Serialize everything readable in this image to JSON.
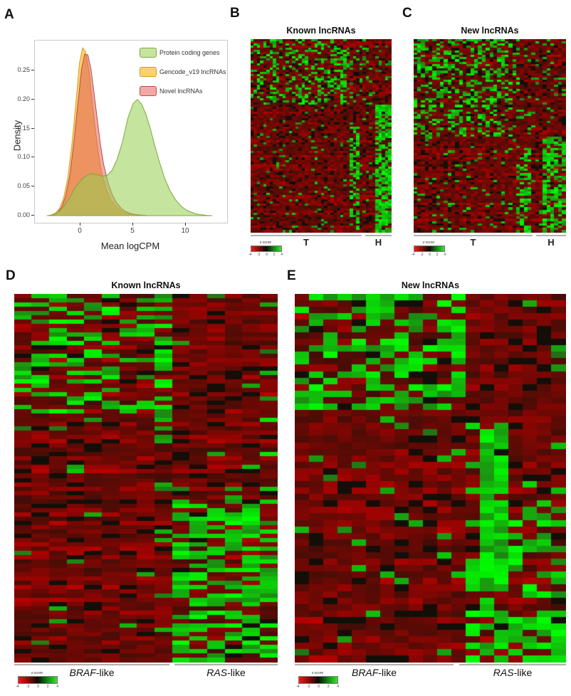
{
  "panels": {
    "a": {
      "label": "A",
      "ylabel": "Density",
      "xlabel": "Mean logCPM",
      "yticks": [
        "0.25",
        "0.20",
        "0.15",
        "0.10",
        "0.05",
        "0.00"
      ],
      "xticks": [
        "0",
        "5",
        "10"
      ],
      "legend": [
        {
          "label": "Protein coding genes",
          "fill": "rgba(150,208,80,0.55)",
          "stroke": "#7aa83c"
        },
        {
          "label": "Gencode_v19 lncRNAs",
          "fill": "rgba(248,198,74,0.8)",
          "stroke": "#d89c28"
        },
        {
          "label": "Novel lncRNAs",
          "fill": "rgba(224,85,81,0.5)",
          "stroke": "#c24a42"
        }
      ]
    },
    "b": {
      "label": "B",
      "title": "Known lncRNAs",
      "groups": [
        {
          "label": "T"
        },
        {
          "label": "H"
        }
      ],
      "colorkey": {
        "title": "z-score",
        "ticks": [
          "-4",
          "-2",
          "0",
          "2",
          "4"
        ]
      }
    },
    "c": {
      "label": "C",
      "title": "New lncRNAs",
      "groups": [
        {
          "label": "T"
        },
        {
          "label": "H"
        }
      ],
      "colorkey": {
        "title": "z-score",
        "ticks": [
          "-4",
          "-2",
          "0",
          "2",
          "4"
        ]
      }
    },
    "d": {
      "label": "D",
      "title": "Known lncRNAs",
      "groups": [
        {
          "italic": "BRAF",
          "rest": "-like"
        },
        {
          "italic": "RAS",
          "rest": "-like"
        }
      ],
      "colorkey": {
        "title": "z-score",
        "ticks": [
          "-4",
          "-2",
          "0",
          "2",
          "4"
        ]
      }
    },
    "e": {
      "label": "E",
      "title": "New lncRNAs",
      "groups": [
        {
          "italic": "BRAF",
          "rest": "-like"
        },
        {
          "italic": "RAS",
          "rest": "-like"
        }
      ],
      "colorkey": {
        "title": "z-score",
        "ticks": [
          "-4",
          "-2",
          "0",
          "2",
          "4"
        ]
      }
    }
  },
  "chart_data": [
    {
      "id": "density",
      "type": "area",
      "title": "",
      "xlabel": "Mean logCPM",
      "ylabel": "Density",
      "xlim": [
        -4.3,
        13.5
      ],
      "ylim": [
        0,
        0.3
      ],
      "xticks": [
        0,
        5,
        10
      ],
      "yticks": [
        0,
        0.05,
        0.1,
        0.15,
        0.2,
        0.25
      ],
      "legend_position": "top-right-inside",
      "grid": false,
      "draw_order": [
        1,
        2,
        0
      ],
      "series": [
        {
          "name": "Protein coding genes",
          "fill": "rgba(150,208,80,0.55)",
          "stroke": "#7aa83c",
          "points": [
            [
              -3,
              0
            ],
            [
              -2.5,
              0.002
            ],
            [
              -2,
              0.008
            ],
            [
              -1.5,
              0.018
            ],
            [
              -1,
              0.032
            ],
            [
              -0.5,
              0.048
            ],
            [
              0,
              0.06
            ],
            [
              0.5,
              0.068
            ],
            [
              1,
              0.072
            ],
            [
              1.5,
              0.071
            ],
            [
              2,
              0.068
            ],
            [
              2.5,
              0.069
            ],
            [
              3,
              0.078
            ],
            [
              3.5,
              0.098
            ],
            [
              4,
              0.128
            ],
            [
              4.5,
              0.168
            ],
            [
              5,
              0.193
            ],
            [
              5.4,
              0.2
            ],
            [
              5.8,
              0.192
            ],
            [
              6.2,
              0.175
            ],
            [
              6.6,
              0.152
            ],
            [
              7,
              0.124
            ],
            [
              7.5,
              0.092
            ],
            [
              8,
              0.064
            ],
            [
              8.5,
              0.043
            ],
            [
              9,
              0.028
            ],
            [
              9.5,
              0.017
            ],
            [
              10,
              0.01
            ],
            [
              10.5,
              0.006
            ],
            [
              11,
              0.003
            ],
            [
              11.5,
              0.0015
            ],
            [
              12,
              0.0005
            ],
            [
              12.5,
              0
            ]
          ]
        },
        {
          "name": "Gencode_v19 lncRNAs",
          "fill": "rgba(248,198,74,0.8)",
          "stroke": "#d89c28",
          "points": [
            [
              -3.2,
              0
            ],
            [
              -2.8,
              0.001
            ],
            [
              -2.4,
              0.004
            ],
            [
              -2,
              0.012
            ],
            [
              -1.6,
              0.03
            ],
            [
              -1.2,
              0.065
            ],
            [
              -0.8,
              0.125
            ],
            [
              -0.4,
              0.2
            ],
            [
              -0.1,
              0.262
            ],
            [
              0.2,
              0.289
            ],
            [
              0.5,
              0.282
            ],
            [
              0.8,
              0.25
            ],
            [
              1.1,
              0.2
            ],
            [
              1.4,
              0.15
            ],
            [
              1.7,
              0.107
            ],
            [
              2,
              0.075
            ],
            [
              2.4,
              0.048
            ],
            [
              2.8,
              0.03
            ],
            [
              3.2,
              0.019
            ],
            [
              3.6,
              0.012
            ],
            [
              4,
              0.007
            ],
            [
              4.5,
              0.004
            ],
            [
              5,
              0.002
            ],
            [
              5.5,
              0.001
            ],
            [
              6,
              0
            ]
          ]
        },
        {
          "name": "Novel lncRNAs",
          "fill": "rgba(224,85,81,0.5)",
          "stroke": "#c24a42",
          "points": [
            [
              -3,
              0
            ],
            [
              -2.6,
              0.001
            ],
            [
              -2.2,
              0.005
            ],
            [
              -1.8,
              0.014
            ],
            [
              -1.4,
              0.034
            ],
            [
              -1,
              0.07
            ],
            [
              -0.6,
              0.13
            ],
            [
              -0.2,
              0.2
            ],
            [
              0.1,
              0.252
            ],
            [
              0.4,
              0.278
            ],
            [
              0.7,
              0.277
            ],
            [
              1,
              0.252
            ],
            [
              1.3,
              0.21
            ],
            [
              1.6,
              0.165
            ],
            [
              1.9,
              0.122
            ],
            [
              2.2,
              0.088
            ],
            [
              2.6,
              0.058
            ],
            [
              3,
              0.037
            ],
            [
              3.4,
              0.023
            ],
            [
              3.8,
              0.014
            ],
            [
              4.2,
              0.008
            ],
            [
              4.7,
              0.004
            ],
            [
              5.2,
              0.002
            ],
            [
              5.8,
              0.001
            ],
            [
              6.5,
              0
            ]
          ]
        }
      ]
    },
    {
      "id": "hm_b",
      "type": "heatmap",
      "title": "Known lncRNAs",
      "rows": 88,
      "cols": 44,
      "seed": 7,
      "col_groups": [
        {
          "label": "T",
          "from": 0,
          "to": 0.8
        },
        {
          "label": "H",
          "from": 0.81,
          "to": 1
        }
      ],
      "colorscale": {
        "low": "#f01818",
        "mid": "#000000",
        "high": "#35e52a",
        "label": "z-score",
        "ticks": [
          -4,
          -2,
          0,
          2,
          4
        ]
      },
      "blocks": [
        {
          "r0": 0,
          "r1": 0.34,
          "c0": 0,
          "c1": 0.3,
          "p": 0.3,
          "b": 1
        },
        {
          "r0": 0,
          "r1": 0.34,
          "c0": 0.3,
          "c1": 0.62,
          "p": 0.35,
          "b": 1
        },
        {
          "r0": 0.05,
          "r1": 0.34,
          "c0": 0.62,
          "c1": 0.68,
          "p": 0.55,
          "b": 1
        },
        {
          "r0": 0,
          "r1": 0.34,
          "c0": 0.68,
          "c1": 0.86,
          "p": 0.12,
          "b": 0.8
        },
        {
          "r0": 0,
          "r1": 0.34,
          "c0": 0.86,
          "c1": 1,
          "p": 0.1,
          "b": 0.7
        },
        {
          "r0": 0.34,
          "r1": 1,
          "c0": 0.87,
          "c1": 1,
          "p": 0.72,
          "b": 1
        },
        {
          "r0": 0.45,
          "r1": 1,
          "c0": 0.7,
          "c1": 0.76,
          "p": 0.45,
          "b": 1
        },
        {
          "r0": 0.34,
          "r1": 1,
          "c0": 0,
          "c1": 0.87,
          "p": 0.05,
          "b": 0.8
        }
      ]
    },
    {
      "id": "hm_c",
      "type": "heatmap",
      "title": "New lncRNAs",
      "rows": 85,
      "cols": 40,
      "seed": 13,
      "col_groups": [
        {
          "label": "T",
          "from": 0,
          "to": 0.8
        },
        {
          "label": "H",
          "from": 0.81,
          "to": 1
        }
      ],
      "colorscale": {
        "low": "#f01818",
        "mid": "#000000",
        "high": "#35e52a",
        "label": "z-score",
        "ticks": [
          -4,
          -2,
          0,
          2,
          4
        ]
      },
      "blocks": [
        {
          "r0": 0,
          "r1": 0.5,
          "c0": 0,
          "c1": 0.58,
          "p": 0.36,
          "b": 1
        },
        {
          "r0": 0,
          "r1": 0.5,
          "c0": 0.58,
          "c1": 0.7,
          "p": 0.25,
          "b": 1
        },
        {
          "r0": 0,
          "r1": 0.5,
          "c0": 0.7,
          "c1": 1,
          "p": 0.1,
          "b": 0.8
        },
        {
          "r0": 0.5,
          "r1": 1,
          "c0": 0.85,
          "c1": 1,
          "p": 0.65,
          "b": 1
        },
        {
          "r0": 0.55,
          "r1": 1,
          "c0": 0.66,
          "c1": 0.76,
          "p": 0.4,
          "b": 1
        },
        {
          "r0": 0.5,
          "r1": 1,
          "c0": 0,
          "c1": 0.66,
          "p": 0.07,
          "b": 0.8
        }
      ]
    },
    {
      "id": "hm_d",
      "type": "heatmap",
      "title": "Known lncRNAs",
      "rows": 86,
      "cols": 15,
      "seed": 42,
      "col_groups": [
        {
          "label": "BRAF-like",
          "from": 0,
          "to": 0.6
        },
        {
          "label": "RAS-like",
          "from": 0.6,
          "to": 1
        }
      ],
      "colorscale": {
        "low": "#f01818",
        "mid": "#000000",
        "high": "#35e52a",
        "label": "z-score",
        "ticks": [
          -4,
          -2,
          0,
          2,
          4
        ]
      },
      "blocks": [
        {
          "r0": 0,
          "r1": 0.32,
          "c0": 0,
          "c1": 0.53,
          "p": 0.42,
          "b": 1
        },
        {
          "r0": 0,
          "r1": 0.4,
          "c0": 0.53,
          "c1": 0.6,
          "p": 0.72,
          "b": 1
        },
        {
          "r0": 0,
          "r1": 0.32,
          "c0": 0.6,
          "c1": 1,
          "p": 0.04,
          "b": 0.6
        },
        {
          "r0": 0.32,
          "r1": 0.55,
          "c0": 0.87,
          "c1": 1,
          "p": 0.22,
          "b": 0.9
        },
        {
          "r0": 0.32,
          "r1": 0.55,
          "c0": 0,
          "c1": 0.87,
          "p": 0.06,
          "b": 0.7
        },
        {
          "r0": 0.55,
          "r1": 1,
          "c0": 0.6,
          "c1": 1,
          "p": 0.6,
          "b": 1
        },
        {
          "r0": 0.55,
          "r1": 1,
          "c0": 0,
          "c1": 0.6,
          "p": 0.05,
          "b": 0.7
        }
      ]
    },
    {
      "id": "hm_e",
      "type": "heatmap",
      "title": "New lncRNAs",
      "rows": 57,
      "cols": 19,
      "seed": 99,
      "col_groups": [
        {
          "label": "BRAF-like",
          "from": 0,
          "to": 0.63
        },
        {
          "label": "RAS-like",
          "from": 0.63,
          "to": 1
        }
      ],
      "colorscale": {
        "low": "#f01818",
        "mid": "#000000",
        "high": "#35e52a",
        "label": "z-score",
        "ticks": [
          -4,
          -2,
          0,
          2,
          4
        ]
      },
      "blocks": [
        {
          "r0": 0,
          "r1": 0.3,
          "c0": 0,
          "c1": 0.63,
          "p": 0.5,
          "b": 1
        },
        {
          "r0": 0,
          "r1": 0.3,
          "c0": 0.63,
          "c1": 1,
          "p": 0.05,
          "b": 0.6
        },
        {
          "r0": 0.35,
          "r1": 0.8,
          "c0": 0.68,
          "c1": 0.74,
          "p": 0.85,
          "b": 1
        },
        {
          "r0": 0.3,
          "r1": 0.55,
          "c0": 0.63,
          "c1": 1,
          "p": 0.08,
          "b": 0.8
        },
        {
          "r0": 0.55,
          "r1": 0.85,
          "c0": 0.63,
          "c1": 1,
          "p": 0.45,
          "b": 1
        },
        {
          "r0": 0.85,
          "r1": 1,
          "c0": 0.63,
          "c1": 1,
          "p": 0.7,
          "b": 1
        },
        {
          "r0": 0.3,
          "r1": 1,
          "c0": 0,
          "c1": 0.63,
          "p": 0.05,
          "b": 0.7
        }
      ]
    }
  ]
}
